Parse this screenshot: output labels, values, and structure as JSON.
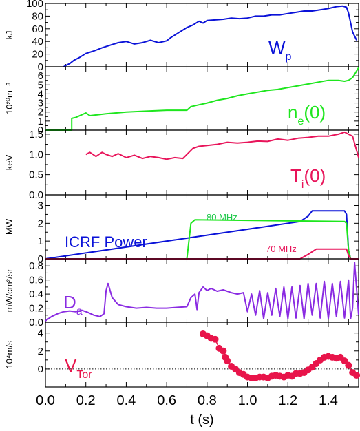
{
  "chart_data": {
    "type": "line",
    "shared_x": {
      "label": "t (s)",
      "range": [
        0.0,
        1.55
      ],
      "ticks": [
        0.0,
        0.2,
        0.4,
        0.6,
        0.8,
        1.0,
        1.2,
        1.4
      ],
      "tick_labels": [
        "0.0",
        "0.2",
        "0.4",
        "0.6",
        "0.8",
        "1.0",
        "1.2",
        "1.4"
      ]
    },
    "panels": [
      {
        "id": "wp",
        "ylabel": "kJ",
        "ylim": [
          0,
          100
        ],
        "yticks": [
          0,
          20,
          40,
          60,
          80,
          100
        ],
        "ytick_labels": [
          "0",
          "20",
          "40",
          "60",
          "80",
          "100"
        ],
        "label_main": "W",
        "label_sub": "p",
        "color": "#0a12d8",
        "series": [
          {
            "x": [
              0.09,
              0.1,
              0.12,
              0.14,
              0.17,
              0.2,
              0.24,
              0.28,
              0.32,
              0.36,
              0.4,
              0.44,
              0.48,
              0.52,
              0.56,
              0.6,
              0.62,
              0.66,
              0.7,
              0.73,
              0.76,
              0.78,
              0.8,
              0.84,
              0.88,
              0.92,
              0.96,
              1.0,
              1.04,
              1.08,
              1.12,
              1.16,
              1.2,
              1.24,
              1.28,
              1.32,
              1.36,
              1.4,
              1.44,
              1.47,
              1.49,
              1.5,
              1.52,
              1.54
            ],
            "y": [
              0,
              2,
              5,
              10,
              15,
              21,
              25,
              30,
              34,
              38,
              40,
              36,
              38,
              42,
              38,
              41,
              46,
              54,
              62,
              66,
              72,
              69,
              73,
              74,
              75,
              77,
              76,
              77,
              80,
              80,
              82,
              82,
              84,
              86,
              88,
              88,
              90,
              92,
              95,
              96,
              94,
              85,
              55,
              42
            ]
          }
        ]
      },
      {
        "id": "ne",
        "ylabel": "10²⁰m⁻³",
        "ylim": [
          0,
          7
        ],
        "yticks": [
          0,
          1,
          2,
          3,
          4,
          5,
          6
        ],
        "ytick_labels": [
          "0",
          "1",
          "2",
          "3",
          "4",
          "5",
          "6"
        ],
        "label_main": "n",
        "label_sub": "e",
        "label_tail": "(0)",
        "color": "#1ee61e",
        "series": [
          {
            "x": [
              0.0,
              0.13,
              0.13,
              0.15,
              0.18,
              0.2,
              0.22,
              0.3,
              0.4,
              0.5,
              0.6,
              0.66,
              0.7,
              0.72,
              0.76,
              0.8,
              0.85,
              0.9,
              0.95,
              1.0,
              1.05,
              1.1,
              1.15,
              1.2,
              1.25,
              1.3,
              1.35,
              1.4,
              1.45,
              1.48,
              1.5,
              1.52,
              1.55
            ],
            "y": [
              0,
              0,
              1.3,
              1.4,
              1.7,
              1.9,
              1.6,
              1.8,
              2.0,
              2.1,
              2.2,
              2.2,
              2.2,
              2.6,
              2.8,
              3.0,
              3.3,
              3.5,
              3.8,
              4.0,
              4.2,
              4.4,
              4.5,
              4.7,
              4.9,
              5.1,
              5.3,
              5.5,
              5.5,
              5.4,
              5.5,
              5.8,
              6.9
            ]
          }
        ]
      },
      {
        "id": "ti",
        "ylabel": "keV",
        "ylim": [
          0.0,
          1.6
        ],
        "yticks": [
          0.0,
          0.5,
          1.0,
          1.5
        ],
        "ytick_labels": [
          "0.0",
          "0.5",
          "1.0",
          "1.5"
        ],
        "label_main": "T",
        "label_sub": "i",
        "label_tail": "(0)",
        "color": "#e8145a",
        "series": [
          {
            "x": [
              0.2,
              0.22,
              0.25,
              0.28,
              0.3,
              0.33,
              0.36,
              0.4,
              0.44,
              0.48,
              0.52,
              0.56,
              0.6,
              0.64,
              0.68,
              0.7,
              0.73,
              0.76,
              0.8,
              0.85,
              0.9,
              0.95,
              1.0,
              1.05,
              1.1,
              1.15,
              1.2,
              1.25,
              1.3,
              1.35,
              1.4,
              1.45,
              1.48,
              1.5,
              1.52,
              1.55
            ],
            "y": [
              1.0,
              1.05,
              0.95,
              1.05,
              1.0,
              0.95,
              1.02,
              0.92,
              0.98,
              0.9,
              0.95,
              0.92,
              0.88,
              0.92,
              0.9,
              1.0,
              1.15,
              1.2,
              1.22,
              1.25,
              1.3,
              1.28,
              1.3,
              1.33,
              1.32,
              1.38,
              1.35,
              1.4,
              1.42,
              1.45,
              1.45,
              1.5,
              1.55,
              1.5,
              1.45,
              0.92
            ]
          }
        ]
      },
      {
        "id": "icrf",
        "ylabel": "MW",
        "ylim": [
          0,
          3.6
        ],
        "yticks": [
          0,
          1,
          2,
          3
        ],
        "ytick_labels": [
          "0",
          "1",
          "2",
          "3"
        ],
        "label_main": "ICRF Power",
        "color": "#0a12d8",
        "annotations": [
          "80 MHz",
          "70 MHz"
        ],
        "series": [
          {
            "color": "#0a12d8",
            "x": [
              0.0,
              1.26,
              1.3,
              1.32,
              1.48,
              1.49,
              1.5,
              1.51,
              1.55
            ],
            "y": [
              0,
              2.1,
              2.4,
              2.7,
              2.7,
              2.5,
              0.5,
              0,
              0
            ]
          },
          {
            "color": "#1ee61e",
            "x": [
              0.0,
              0.7,
              0.72,
              0.74,
              1.48,
              1.49,
              1.5,
              1.51,
              1.55
            ],
            "y": [
              0,
              0,
              2.0,
              2.2,
              2.1,
              2.0,
              0.5,
              0,
              0
            ]
          },
          {
            "color": "#e8145a",
            "x": [
              0.0,
              1.26,
              1.3,
              1.34,
              1.48,
              1.49,
              1.5,
              1.51,
              1.55
            ],
            "y": [
              0,
              0,
              0.25,
              0.55,
              0.55,
              0.55,
              0.2,
              0,
              0
            ]
          }
        ]
      },
      {
        "id": "da",
        "ylabel": "mW/cm²/sr",
        "ylim": [
          0.0,
          0.9
        ],
        "yticks": [
          0.0,
          0.2,
          0.4,
          0.6,
          0.8
        ],
        "ytick_labels": [
          "0.0",
          "0.2",
          "0.4",
          "0.6",
          "0.8"
        ],
        "label_main": "D",
        "label_sub": "a",
        "color": "#8a2be2",
        "series": [
          {
            "x": [
              0.0,
              0.03,
              0.06,
              0.09,
              0.12,
              0.15,
              0.18,
              0.21,
              0.24,
              0.27,
              0.29,
              0.3,
              0.31,
              0.33,
              0.36,
              0.4,
              0.45,
              0.5,
              0.55,
              0.6,
              0.65,
              0.7,
              0.72,
              0.74,
              0.75,
              0.76,
              0.78,
              0.8,
              0.82,
              0.85,
              0.88,
              0.92,
              0.95,
              0.98,
              1.0,
              1.02,
              1.04,
              1.06,
              1.08,
              1.1,
              1.12,
              1.14,
              1.16,
              1.18,
              1.2,
              1.22,
              1.24,
              1.26,
              1.28,
              1.3,
              1.32,
              1.34,
              1.36,
              1.38,
              1.4,
              1.42,
              1.44,
              1.46,
              1.48,
              1.5,
              1.51,
              1.52,
              1.53,
              1.55
            ],
            "y": [
              0.02,
              0.08,
              0.12,
              0.15,
              0.16,
              0.15,
              0.17,
              0.14,
              0.1,
              0.08,
              0.12,
              0.45,
              0.55,
              0.35,
              0.25,
              0.22,
              0.2,
              0.21,
              0.2,
              0.2,
              0.21,
              0.22,
              0.35,
              0.4,
              0.18,
              0.42,
              0.5,
              0.45,
              0.48,
              0.44,
              0.46,
              0.42,
              0.4,
              0.42,
              0.15,
              0.4,
              0.1,
              0.45,
              0.05,
              0.42,
              0.1,
              0.48,
              0.08,
              0.5,
              0.05,
              0.5,
              0.06,
              0.52,
              0.05,
              0.55,
              0.1,
              0.55,
              0.06,
              0.58,
              0.05,
              0.55,
              0.08,
              0.58,
              0.06,
              0.6,
              0.05,
              0.2,
              0.85,
              0.1
            ]
          }
        ]
      },
      {
        "id": "vtor",
        "ylabel": "10⁴m/s",
        "ylim": [
          -2,
          5.2
        ],
        "yticks": [
          0,
          2,
          4
        ],
        "ytick_labels": [
          "0",
          "2",
          "4"
        ],
        "label_main": "V",
        "label_sub": "Tor",
        "color": "#e8144a",
        "zero_line": true,
        "series": [
          {
            "marker": "circle",
            "x": [
              0.78,
              0.8,
              0.82,
              0.84,
              0.86,
              0.88,
              0.89,
              0.9,
              0.92,
              0.94,
              0.96,
              0.98,
              1.0,
              1.02,
              1.04,
              1.06,
              1.08,
              1.1,
              1.12,
              1.14,
              1.16,
              1.18,
              1.2,
              1.22,
              1.24,
              1.26,
              1.28,
              1.3,
              1.32,
              1.34,
              1.36,
              1.38,
              1.4,
              1.42,
              1.44,
              1.46,
              1.48,
              1.5,
              1.52,
              1.54
            ],
            "y": [
              3.9,
              3.7,
              3.4,
              3.3,
              2.3,
              2.0,
              1.3,
              0.9,
              0.3,
              0.0,
              -0.4,
              -0.6,
              -0.9,
              -1.0,
              -1.0,
              -0.9,
              -0.9,
              -1.0,
              -0.8,
              -0.7,
              -0.8,
              -0.9,
              -0.7,
              -0.8,
              -0.5,
              -0.5,
              -0.4,
              -0.1,
              0.2,
              0.6,
              1.0,
              1.3,
              1.4,
              1.3,
              1.2,
              1.3,
              0.9,
              0.4,
              -0.4,
              -0.7
            ]
          }
        ]
      }
    ]
  }
}
